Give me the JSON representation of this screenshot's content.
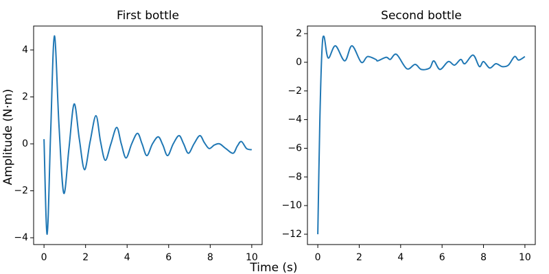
{
  "chart_data": [
    {
      "type": "line",
      "title": "First bottle",
      "x": [
        0,
        0.15,
        0.32,
        0.5,
        0.72,
        0.95,
        1.2,
        1.45,
        1.7,
        1.95,
        2.22,
        2.5,
        2.72,
        2.95,
        3.22,
        3.5,
        3.72,
        3.95,
        4.22,
        4.5,
        4.72,
        4.95,
        5.22,
        5.5,
        5.72,
        5.95,
        6.22,
        6.5,
        6.72,
        6.95,
        7.22,
        7.5,
        7.72,
        7.95,
        8.2,
        8.45,
        8.75,
        9.1,
        9.3,
        9.5,
        9.75,
        10
      ],
      "series": [
        {
          "color": "#1f77b4",
          "values": [
            0.2,
            -3.85,
            0.5,
            4.6,
            0.8,
            -2.1,
            -0.2,
            1.7,
            0.2,
            -1.1,
            0.1,
            1.2,
            0.1,
            -0.7,
            0.0,
            0.7,
            0.0,
            -0.6,
            0.0,
            0.45,
            0.0,
            -0.5,
            0.0,
            0.3,
            -0.05,
            -0.5,
            0.0,
            0.35,
            0.0,
            -0.4,
            0.0,
            0.35,
            0.05,
            -0.2,
            -0.05,
            0.0,
            -0.2,
            -0.4,
            -0.1,
            0.1,
            -0.2,
            -0.25
          ]
        }
      ],
      "xlim": [
        -0.5,
        10.5
      ],
      "ylim": [
        -4.29,
        5.02
      ],
      "xticks": [
        0,
        2,
        4,
        6,
        8,
        10
      ],
      "yticks": [
        {
          "value": -4,
          "label": "−4"
        },
        {
          "value": -2,
          "label": "−2"
        },
        0,
        2,
        4
      ]
    },
    {
      "type": "line",
      "title": "Second bottle",
      "x": [
        0,
        0.1,
        0.2,
        0.3,
        0.5,
        0.85,
        1.3,
        1.65,
        2.1,
        2.4,
        2.8,
        2.9,
        3.3,
        3.5,
        3.8,
        4.3,
        4.7,
        5.0,
        5.4,
        5.6,
        5.9,
        6.3,
        6.6,
        6.9,
        7.1,
        7.5,
        7.8,
        8.0,
        8.3,
        8.6,
        8.9,
        9.2,
        9.5,
        9.7,
        10
      ],
      "series": [
        {
          "color": "#1f77b4",
          "values": [
            -12,
            -4,
            0.8,
            1.8,
            0.3,
            1.15,
            0.1,
            1.15,
            0.0,
            0.4,
            0.2,
            0.1,
            0.35,
            0.2,
            0.55,
            -0.45,
            -0.15,
            -0.5,
            -0.4,
            0.1,
            -0.5,
            0.05,
            -0.2,
            0.2,
            -0.1,
            0.5,
            -0.3,
            0.05,
            -0.4,
            -0.1,
            -0.3,
            -0.2,
            0.4,
            0.15,
            0.4
          ]
        }
      ],
      "xlim": [
        -0.5,
        10.5
      ],
      "ylim": [
        -12.72,
        2.53
      ],
      "xticks": [
        0,
        2,
        4,
        6,
        8,
        10
      ],
      "yticks": [
        {
          "value": -12,
          "label": "−12"
        },
        {
          "value": -10,
          "label": "−10"
        },
        {
          "value": -8,
          "label": "−8"
        },
        {
          "value": -6,
          "label": "−6"
        },
        {
          "value": -4,
          "label": "−4"
        },
        {
          "value": -2,
          "label": "−2"
        },
        0,
        2
      ]
    }
  ],
  "xlabel": "Time (s)",
  "ylabel": "Amplitude (N·m)"
}
